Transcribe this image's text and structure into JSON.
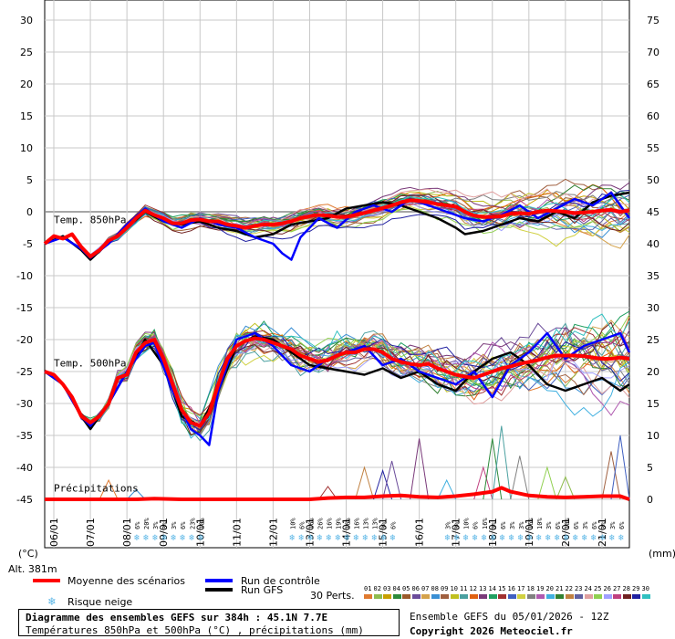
{
  "chart_data": {
    "type": "line",
    "title": "Diagramme des ensembles GEFS sur 384h : 45.1N 7.7E",
    "subtitle": "Températures 850hPa et 500hPa (°C) , précipitations (mm)",
    "run_info": "Ensemble GEFS du 05/01/2026 - 12Z",
    "copyright": "Copyright 2026 Meteociel.fr",
    "altitude": "Alt. 381m",
    "left_unit": "(°C)",
    "right_unit": "(mm)",
    "x_dates": [
      "06/01",
      "07/01",
      "08/01",
      "09/01",
      "10/01",
      "11/01",
      "12/01",
      "13/01",
      "14/01",
      "15/01",
      "16/01",
      "17/01",
      "18/01",
      "19/01",
      "20/01",
      "21/01"
    ],
    "y_left_ticks": [
      30,
      25,
      20,
      15,
      10,
      5,
      0,
      -5,
      -10,
      -15,
      -20,
      -25,
      -30,
      -35,
      -40,
      -45
    ],
    "y_right_ticks": [
      75,
      70,
      65,
      60,
      55,
      50,
      45,
      40,
      35,
      30,
      25,
      20,
      15,
      10,
      5,
      0
    ],
    "ylim_left": [
      -45,
      30
    ],
    "ylim_right": [
      0,
      75
    ],
    "panel_labels": [
      "Temp. 850hPa",
      "Temp. 500hPa",
      "Précipitations"
    ],
    "legend": {
      "mean": "Moyenne des scénarios",
      "control": "Run de contrôle",
      "gfs": "Run GFS",
      "snow": "Risque neige",
      "perts": "30 Perts."
    },
    "colors": {
      "mean": "#ff0000",
      "control": "#0000ff",
      "gfs": "#000000",
      "snow": "#5ab6e6"
    },
    "perturbation_labels": [
      "01",
      "02",
      "03",
      "04",
      "05",
      "06",
      "07",
      "08",
      "09",
      "10",
      "11",
      "12",
      "13",
      "14",
      "15",
      "16",
      "17",
      "18",
      "19",
      "20",
      "21",
      "22",
      "23",
      "24",
      "25",
      "26",
      "27",
      "28",
      "29",
      "30"
    ],
    "perturbation_colors": [
      "#e07a30",
      "#8fbc4f",
      "#c8a000",
      "#2c8a3a",
      "#9a5a2a",
      "#6b4c9a",
      "#d4a24c",
      "#3a8fd4",
      "#a06040",
      "#c0c020",
      "#4aa0a0",
      "#e06010",
      "#7a3a7a",
      "#20a060",
      "#a03030",
      "#4060c0",
      "#d0d040",
      "#808080",
      "#b05ab0",
      "#40b0e0",
      "#308030",
      "#c08040",
      "#6060a0",
      "#e0a0a0",
      "#90d050",
      "#a0a0ff",
      "#c04080",
      "#702020",
      "#2020a0",
      "#30c0c0"
    ],
    "mean_850": [
      [
        0,
        -5
      ],
      [
        6,
        -3.8
      ],
      [
        12,
        -4.2
      ],
      [
        18,
        -3.5
      ],
      [
        24,
        -5.5
      ],
      [
        30,
        -7
      ],
      [
        36,
        -6
      ],
      [
        42,
        -4.5
      ],
      [
        48,
        -3.8
      ],
      [
        54,
        -2.5
      ],
      [
        60,
        -1
      ],
      [
        66,
        0.2
      ],
      [
        72,
        -0.5
      ],
      [
        78,
        -1
      ],
      [
        84,
        -1.8
      ],
      [
        90,
        -1.8
      ],
      [
        96,
        -1.3
      ],
      [
        102,
        -1.2
      ],
      [
        108,
        -1.5
      ],
      [
        114,
        -1.5
      ],
      [
        120,
        -2
      ],
      [
        126,
        -2.2
      ],
      [
        132,
        -2.5
      ],
      [
        138,
        -2.2
      ],
      [
        144,
        -2
      ],
      [
        150,
        -2
      ],
      [
        156,
        -1.8
      ],
      [
        162,
        -1.5
      ],
      [
        168,
        -1
      ],
      [
        174,
        -0.7
      ],
      [
        180,
        -0.5
      ],
      [
        186,
        -0.6
      ],
      [
        192,
        -0.8
      ],
      [
        198,
        -0.8
      ],
      [
        204,
        -0.5
      ],
      [
        210,
        -0.2
      ],
      [
        216,
        0.2
      ],
      [
        222,
        0.6
      ],
      [
        228,
        1
      ],
      [
        234,
        1.5
      ],
      [
        240,
        1.8
      ],
      [
        246,
        1.7
      ],
      [
        252,
        1.5
      ],
      [
        258,
        1.2
      ],
      [
        264,
        1
      ],
      [
        270,
        0.8
      ],
      [
        276,
        0
      ],
      [
        282,
        -0.6
      ],
      [
        288,
        -0.8
      ],
      [
        294,
        -0.8
      ],
      [
        300,
        -0.7
      ],
      [
        306,
        -0.3
      ],
      [
        312,
        -0.2
      ],
      [
        318,
        -0.3
      ],
      [
        324,
        0
      ],
      [
        330,
        0.2
      ],
      [
        336,
        0.1
      ],
      [
        342,
        0
      ],
      [
        348,
        -0.2
      ],
      [
        354,
        -0.1
      ],
      [
        360,
        0
      ],
      [
        366,
        0.2
      ],
      [
        372,
        0.3
      ],
      [
        378,
        0
      ],
      [
        384,
        0.2
      ]
    ],
    "mean_500": [
      [
        0,
        -25
      ],
      [
        6,
        -25.5
      ],
      [
        12,
        -27
      ],
      [
        18,
        -29
      ],
      [
        24,
        -32
      ],
      [
        30,
        -33
      ],
      [
        36,
        -32
      ],
      [
        42,
        -30
      ],
      [
        48,
        -26
      ],
      [
        54,
        -25.5
      ],
      [
        60,
        -22
      ],
      [
        66,
        -20.5
      ],
      [
        72,
        -20
      ],
      [
        78,
        -23
      ],
      [
        84,
        -27
      ],
      [
        90,
        -31
      ],
      [
        96,
        -33
      ],
      [
        102,
        -33.5
      ],
      [
        108,
        -31.5
      ],
      [
        114,
        -27
      ],
      [
        120,
        -23
      ],
      [
        126,
        -21
      ],
      [
        132,
        -20.2
      ],
      [
        138,
        -19.8
      ],
      [
        144,
        -20
      ],
      [
        150,
        -20.5
      ],
      [
        156,
        -21
      ],
      [
        162,
        -21.5
      ],
      [
        168,
        -22.5
      ],
      [
        174,
        -23
      ],
      [
        180,
        -23.5
      ],
      [
        186,
        -23.2
      ],
      [
        192,
        -22.5
      ],
      [
        198,
        -22
      ],
      [
        204,
        -22
      ],
      [
        210,
        -21.5
      ],
      [
        216,
        -21.5
      ],
      [
        222,
        -22
      ],
      [
        228,
        -23
      ],
      [
        234,
        -23.5
      ],
      [
        240,
        -23.8
      ],
      [
        246,
        -24
      ],
      [
        252,
        -23.8
      ],
      [
        258,
        -24.5
      ],
      [
        264,
        -25
      ],
      [
        270,
        -25.5
      ],
      [
        276,
        -25.8
      ],
      [
        282,
        -26
      ],
      [
        288,
        -25.5
      ],
      [
        294,
        -25
      ],
      [
        300,
        -24.5
      ],
      [
        306,
        -24.2
      ],
      [
        312,
        -23.8
      ],
      [
        318,
        -23.5
      ],
      [
        324,
        -23.2
      ],
      [
        330,
        -22.8
      ],
      [
        336,
        -22.5
      ],
      [
        342,
        -22.5
      ],
      [
        348,
        -22.5
      ],
      [
        354,
        -22.6
      ],
      [
        360,
        -22.8
      ],
      [
        366,
        -23
      ],
      [
        372,
        -23
      ],
      [
        378,
        -22.8
      ],
      [
        384,
        -23
      ]
    ],
    "control_850": [
      [
        0,
        -5
      ],
      [
        12,
        -4
      ],
      [
        24,
        -5.8
      ],
      [
        30,
        -7.2
      ],
      [
        42,
        -5
      ],
      [
        54,
        -2
      ],
      [
        66,
        0.5
      ],
      [
        78,
        -1.5
      ],
      [
        90,
        -2.5
      ],
      [
        102,
        -1
      ],
      [
        114,
        -2
      ],
      [
        126,
        -2.5
      ],
      [
        138,
        -4
      ],
      [
        150,
        -5
      ],
      [
        156,
        -6.5
      ],
      [
        162,
        -7.5
      ],
      [
        168,
        -4
      ],
      [
        180,
        -1
      ],
      [
        192,
        -2.5
      ],
      [
        204,
        0
      ],
      [
        216,
        1
      ],
      [
        228,
        0
      ],
      [
        240,
        2
      ],
      [
        252,
        1
      ],
      [
        264,
        0
      ],
      [
        276,
        -1
      ],
      [
        288,
        -1.5
      ],
      [
        300,
        -0.5
      ],
      [
        312,
        1
      ],
      [
        324,
        -1
      ],
      [
        336,
        0.5
      ],
      [
        348,
        2
      ],
      [
        360,
        1
      ],
      [
        372,
        3
      ],
      [
        384,
        -1
      ]
    ],
    "control_500": [
      [
        0,
        -25
      ],
      [
        12,
        -27
      ],
      [
        24,
        -32
      ],
      [
        30,
        -33.5
      ],
      [
        42,
        -30
      ],
      [
        54,
        -25
      ],
      [
        66,
        -21
      ],
      [
        72,
        -20.5
      ],
      [
        84,
        -28
      ],
      [
        96,
        -34
      ],
      [
        102,
        -35
      ],
      [
        108,
        -36.5
      ],
      [
        114,
        -28
      ],
      [
        126,
        -20
      ],
      [
        138,
        -19
      ],
      [
        150,
        -21
      ],
      [
        162,
        -24
      ],
      [
        174,
        -25
      ],
      [
        186,
        -23
      ],
      [
        198,
        -22
      ],
      [
        210,
        -21
      ],
      [
        222,
        -24
      ],
      [
        234,
        -23
      ],
      [
        246,
        -25
      ],
      [
        258,
        -26
      ],
      [
        270,
        -27
      ],
      [
        282,
        -25
      ],
      [
        294,
        -29
      ],
      [
        306,
        -24
      ],
      [
        318,
        -22
      ],
      [
        330,
        -19
      ],
      [
        342,
        -23
      ],
      [
        354,
        -21
      ],
      [
        366,
        -20
      ],
      [
        378,
        -19
      ],
      [
        384,
        -22
      ]
    ],
    "gfs_850": [
      [
        0,
        -5
      ],
      [
        12,
        -3.8
      ],
      [
        24,
        -6
      ],
      [
        30,
        -7.5
      ],
      [
        42,
        -4.8
      ],
      [
        54,
        -2.5
      ],
      [
        66,
        0
      ],
      [
        78,
        -1.5
      ],
      [
        90,
        -2
      ],
      [
        102,
        -1.5
      ],
      [
        114,
        -2.5
      ],
      [
        126,
        -3
      ],
      [
        138,
        -4
      ],
      [
        150,
        -3.5
      ],
      [
        162,
        -2
      ],
      [
        174,
        -1.5
      ],
      [
        186,
        -1
      ],
      [
        198,
        0.5
      ],
      [
        210,
        1
      ],
      [
        222,
        1.5
      ],
      [
        234,
        1
      ],
      [
        246,
        0
      ],
      [
        258,
        -1
      ],
      [
        270,
        -2.5
      ],
      [
        276,
        -3.5
      ],
      [
        288,
        -3
      ],
      [
        300,
        -2
      ],
      [
        312,
        -1
      ],
      [
        324,
        -1.5
      ],
      [
        336,
        0
      ],
      [
        348,
        -1
      ],
      [
        360,
        1.5
      ],
      [
        372,
        2.5
      ],
      [
        384,
        3
      ]
    ],
    "gfs_500": [
      [
        0,
        -25
      ],
      [
        12,
        -27
      ],
      [
        24,
        -32
      ],
      [
        30,
        -34
      ],
      [
        42,
        -30
      ],
      [
        54,
        -25
      ],
      [
        66,
        -20
      ],
      [
        78,
        -24
      ],
      [
        90,
        -32
      ],
      [
        102,
        -33.5
      ],
      [
        114,
        -28
      ],
      [
        126,
        -21
      ],
      [
        138,
        -19.5
      ],
      [
        150,
        -20
      ],
      [
        162,
        -22
      ],
      [
        174,
        -24
      ],
      [
        186,
        -24.5
      ],
      [
        198,
        -25
      ],
      [
        210,
        -25.5
      ],
      [
        222,
        -24.5
      ],
      [
        234,
        -26
      ],
      [
        246,
        -25
      ],
      [
        258,
        -27
      ],
      [
        270,
        -28
      ],
      [
        282,
        -25
      ],
      [
        294,
        -23
      ],
      [
        306,
        -22
      ],
      [
        318,
        -24
      ],
      [
        330,
        -27
      ],
      [
        342,
        -28
      ],
      [
        354,
        -27
      ],
      [
        366,
        -26
      ],
      [
        378,
        -28
      ],
      [
        384,
        -27
      ]
    ],
    "mean_precip": [
      [
        0,
        0
      ],
      [
        60,
        0
      ],
      [
        72,
        0.1
      ],
      [
        90,
        0
      ],
      [
        174,
        0
      ],
      [
        186,
        0.2
      ],
      [
        198,
        0.3
      ],
      [
        210,
        0.3
      ],
      [
        222,
        0.5
      ],
      [
        234,
        0.6
      ],
      [
        246,
        0.4
      ],
      [
        258,
        0.3
      ],
      [
        270,
        0.5
      ],
      [
        282,
        0.8
      ],
      [
        294,
        1.2
      ],
      [
        300,
        1.8
      ],
      [
        306,
        1.2
      ],
      [
        318,
        0.6
      ],
      [
        330,
        0.4
      ],
      [
        342,
        0.3
      ],
      [
        354,
        0.4
      ],
      [
        366,
        0.5
      ],
      [
        378,
        0.5
      ],
      [
        384,
        0
      ]
    ],
    "precip_spikes_mm": [
      {
        "h": 42,
        "mm": 3
      },
      {
        "h": 60,
        "mm": 1.5
      },
      {
        "h": 186,
        "mm": 2
      },
      {
        "h": 210,
        "mm": 5
      },
      {
        "h": 222,
        "mm": 4.5
      },
      {
        "h": 228,
        "mm": 6
      },
      {
        "h": 246,
        "mm": 9.5
      },
      {
        "h": 264,
        "mm": 3
      },
      {
        "h": 288,
        "mm": 5
      },
      {
        "h": 294,
        "mm": 9.5
      },
      {
        "h": 300,
        "mm": 11.5
      },
      {
        "h": 312,
        "mm": 6.8
      },
      {
        "h": 330,
        "mm": 5
      },
      {
        "h": 342,
        "mm": 3.5
      },
      {
        "h": 372,
        "mm": 7.5
      },
      {
        "h": 378,
        "mm": 10
      }
    ],
    "snow_risk_groups": [
      {
        "start_h": 60,
        "labels": [
          "6%",
          "20%",
          "3%",
          "3%",
          "3%"
        ]
      },
      {
        "start_h": 90,
        "labels": [
          "6%",
          "23%",
          "10%"
        ]
      },
      {
        "start_h": 162,
        "labels": [
          "10%",
          "6%",
          "16%",
          "26%",
          "16%",
          "19%",
          "16%",
          "16%",
          "13%",
          "13%",
          "3%",
          "6%"
        ]
      },
      {
        "start_h": 264,
        "labels": [
          "3%",
          "3%",
          "10%",
          "6%",
          "16%",
          "3%",
          "6%",
          "3%",
          "3%",
          "16%",
          "10%",
          "3%",
          "6%",
          "10%",
          "6%",
          "3%",
          "6%",
          "3%",
          "3%",
          "6%"
        ]
      }
    ]
  }
}
